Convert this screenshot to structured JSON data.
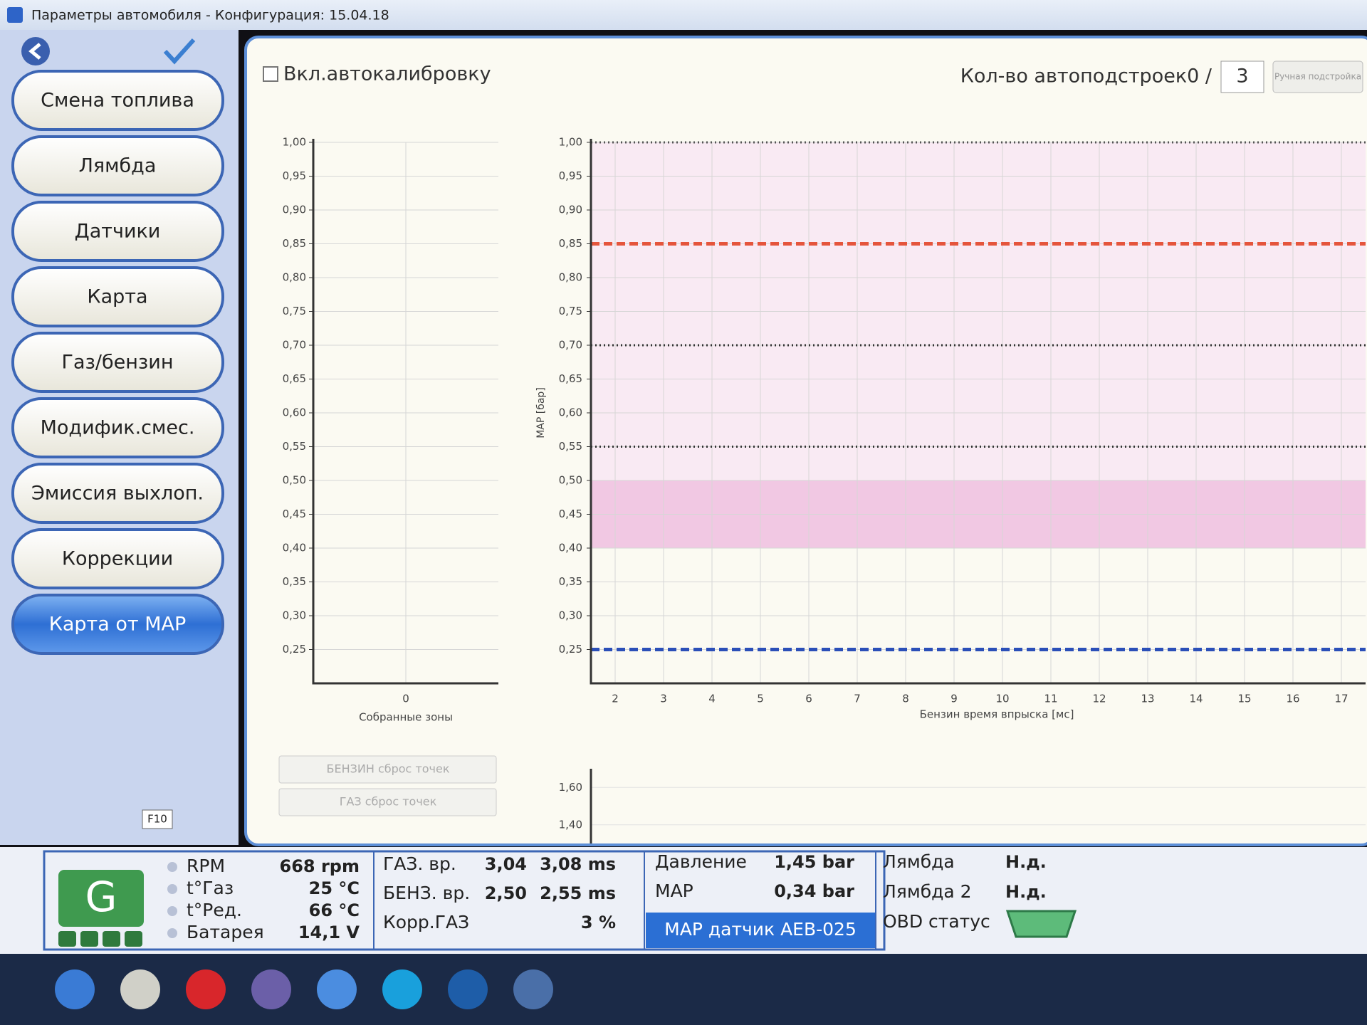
{
  "window": {
    "title": "Параметры автомобиля - Конфигурация: 15.04.18"
  },
  "menu": {
    "buttons": [
      "Смена топлива",
      "Лямбда",
      "Датчики",
      "Карта",
      "Газ/бензин",
      "Модифик.смес.",
      "Эмиссия выхлоп.",
      "Коррекции",
      "Карта от MAP"
    ],
    "active": 8,
    "tooltip": "F10"
  },
  "header": {
    "checkbox": "Вкл.автокалибровку",
    "counter_label": "Кол-во автоподстроек0 /",
    "counter_value": "3",
    "manual_button": "Ручная подстройка"
  },
  "zones_chart": {
    "xlabel": "Собранные зоны",
    "xlim": [
      -1,
      1
    ],
    "xticks": [
      0
    ],
    "ylim": [
      0.2,
      1.0
    ],
    "yticks": [
      {
        "value": 1.0,
        "label": "1,00"
      },
      {
        "value": 0.95,
        "label": "0,95"
      },
      {
        "value": 0.9,
        "label": "0,90"
      },
      {
        "value": 0.85,
        "label": "0,85"
      },
      {
        "value": 0.8,
        "label": "0,80"
      },
      {
        "value": 0.75,
        "label": "0,75"
      },
      {
        "value": 0.7,
        "label": "0,70"
      },
      {
        "value": 0.65,
        "label": "0,65"
      },
      {
        "value": 0.6,
        "label": "0,60"
      },
      {
        "value": 0.55,
        "label": "0,55"
      },
      {
        "value": 0.5,
        "label": "0,50"
      },
      {
        "value": 0.45,
        "label": "0,45"
      },
      {
        "value": 0.4,
        "label": "0,40"
      },
      {
        "value": 0.35,
        "label": "0,35"
      },
      {
        "value": 0.3,
        "label": "0,30"
      },
      {
        "value": 0.25,
        "label": "0,25"
      }
    ]
  },
  "map_chart": {
    "ylabel": "MAP [бар]",
    "xlabel": "Бензин время впрыска [мс]",
    "xlim": [
      1.5,
      17.5
    ],
    "xticks": [
      2,
      3,
      4,
      5,
      6,
      7,
      8,
      9,
      10,
      11,
      12,
      13,
      14,
      15,
      16,
      17
    ],
    "ylim": [
      0.2,
      1.0
    ],
    "yticks": [
      {
        "value": 1.0,
        "label": "1,00"
      },
      {
        "value": 0.95,
        "label": "0,95"
      },
      {
        "value": 0.9,
        "label": "0,90"
      },
      {
        "value": 0.85,
        "label": "0,85"
      },
      {
        "value": 0.8,
        "label": "0,80"
      },
      {
        "value": 0.75,
        "label": "0,75"
      },
      {
        "value": 0.7,
        "label": "0,70"
      },
      {
        "value": 0.65,
        "label": "0,65"
      },
      {
        "value": 0.6,
        "label": "0,60"
      },
      {
        "value": 0.55,
        "label": "0,55"
      },
      {
        "value": 0.5,
        "label": "0,50"
      },
      {
        "value": 0.45,
        "label": "0,45"
      },
      {
        "value": 0.4,
        "label": "0,40"
      },
      {
        "value": 0.35,
        "label": "0,35"
      },
      {
        "value": 0.3,
        "label": "0,30"
      },
      {
        "value": 0.25,
        "label": "0,25"
      }
    ],
    "bands": [
      {
        "from": 0.5,
        "to": 1.0,
        "color": "#f9eaf3"
      },
      {
        "from": 0.4,
        "to": 0.5,
        "color": "#f1c8e3"
      }
    ],
    "lines": [
      {
        "value": 1.0,
        "style": "dotted",
        "color": "#555555"
      },
      {
        "value": 0.85,
        "style": "dashed",
        "color": "#e5553c"
      },
      {
        "value": 0.7,
        "style": "dotted",
        "color": "#333333"
      },
      {
        "value": 0.55,
        "style": "dotted",
        "color": "#333333"
      },
      {
        "value": 0.25,
        "style": "dashed",
        "color": "#2b4fb8"
      }
    ]
  },
  "lower_chart": {
    "ylim": [
      1.3,
      1.7
    ],
    "yticks": [
      {
        "value": 1.6,
        "label": "1,60"
      },
      {
        "value": 1.4,
        "label": "1,40"
      }
    ]
  },
  "reset_buttons": [
    "БЕНЗИН сброс точек",
    "ГАЗ сброс точек"
  ],
  "status": {
    "badge": "G",
    "engine": [
      {
        "label": "RPM",
        "value": "668 rpm"
      },
      {
        "label": "t°Газ",
        "value": "25 °C"
      },
      {
        "label": "t°Ред.",
        "value": "66 °C"
      },
      {
        "label": "Батарея",
        "value": "14,1 V"
      }
    ],
    "injection": [
      {
        "label": "ГАЗ. вр.",
        "v1": "3,04",
        "v2": "3,08 ms"
      },
      {
        "label": "БЕНЗ. вр.",
        "v1": "2,50",
        "v2": "2,55 ms"
      },
      {
        "label": "Корр.ГАЗ",
        "v2": "3 %"
      }
    ],
    "pressure": [
      {
        "label": "Давление",
        "value": "1,45 bar"
      },
      {
        "label": "MAP",
        "value": "0,34 bar"
      }
    ],
    "sensor": "MAP датчик AEB-025",
    "lambda": [
      {
        "label": "Лямбда",
        "value": "Н.д."
      },
      {
        "label": "Лямбда 2",
        "value": "Н.д."
      },
      {
        "label": "OBD статус"
      }
    ]
  }
}
